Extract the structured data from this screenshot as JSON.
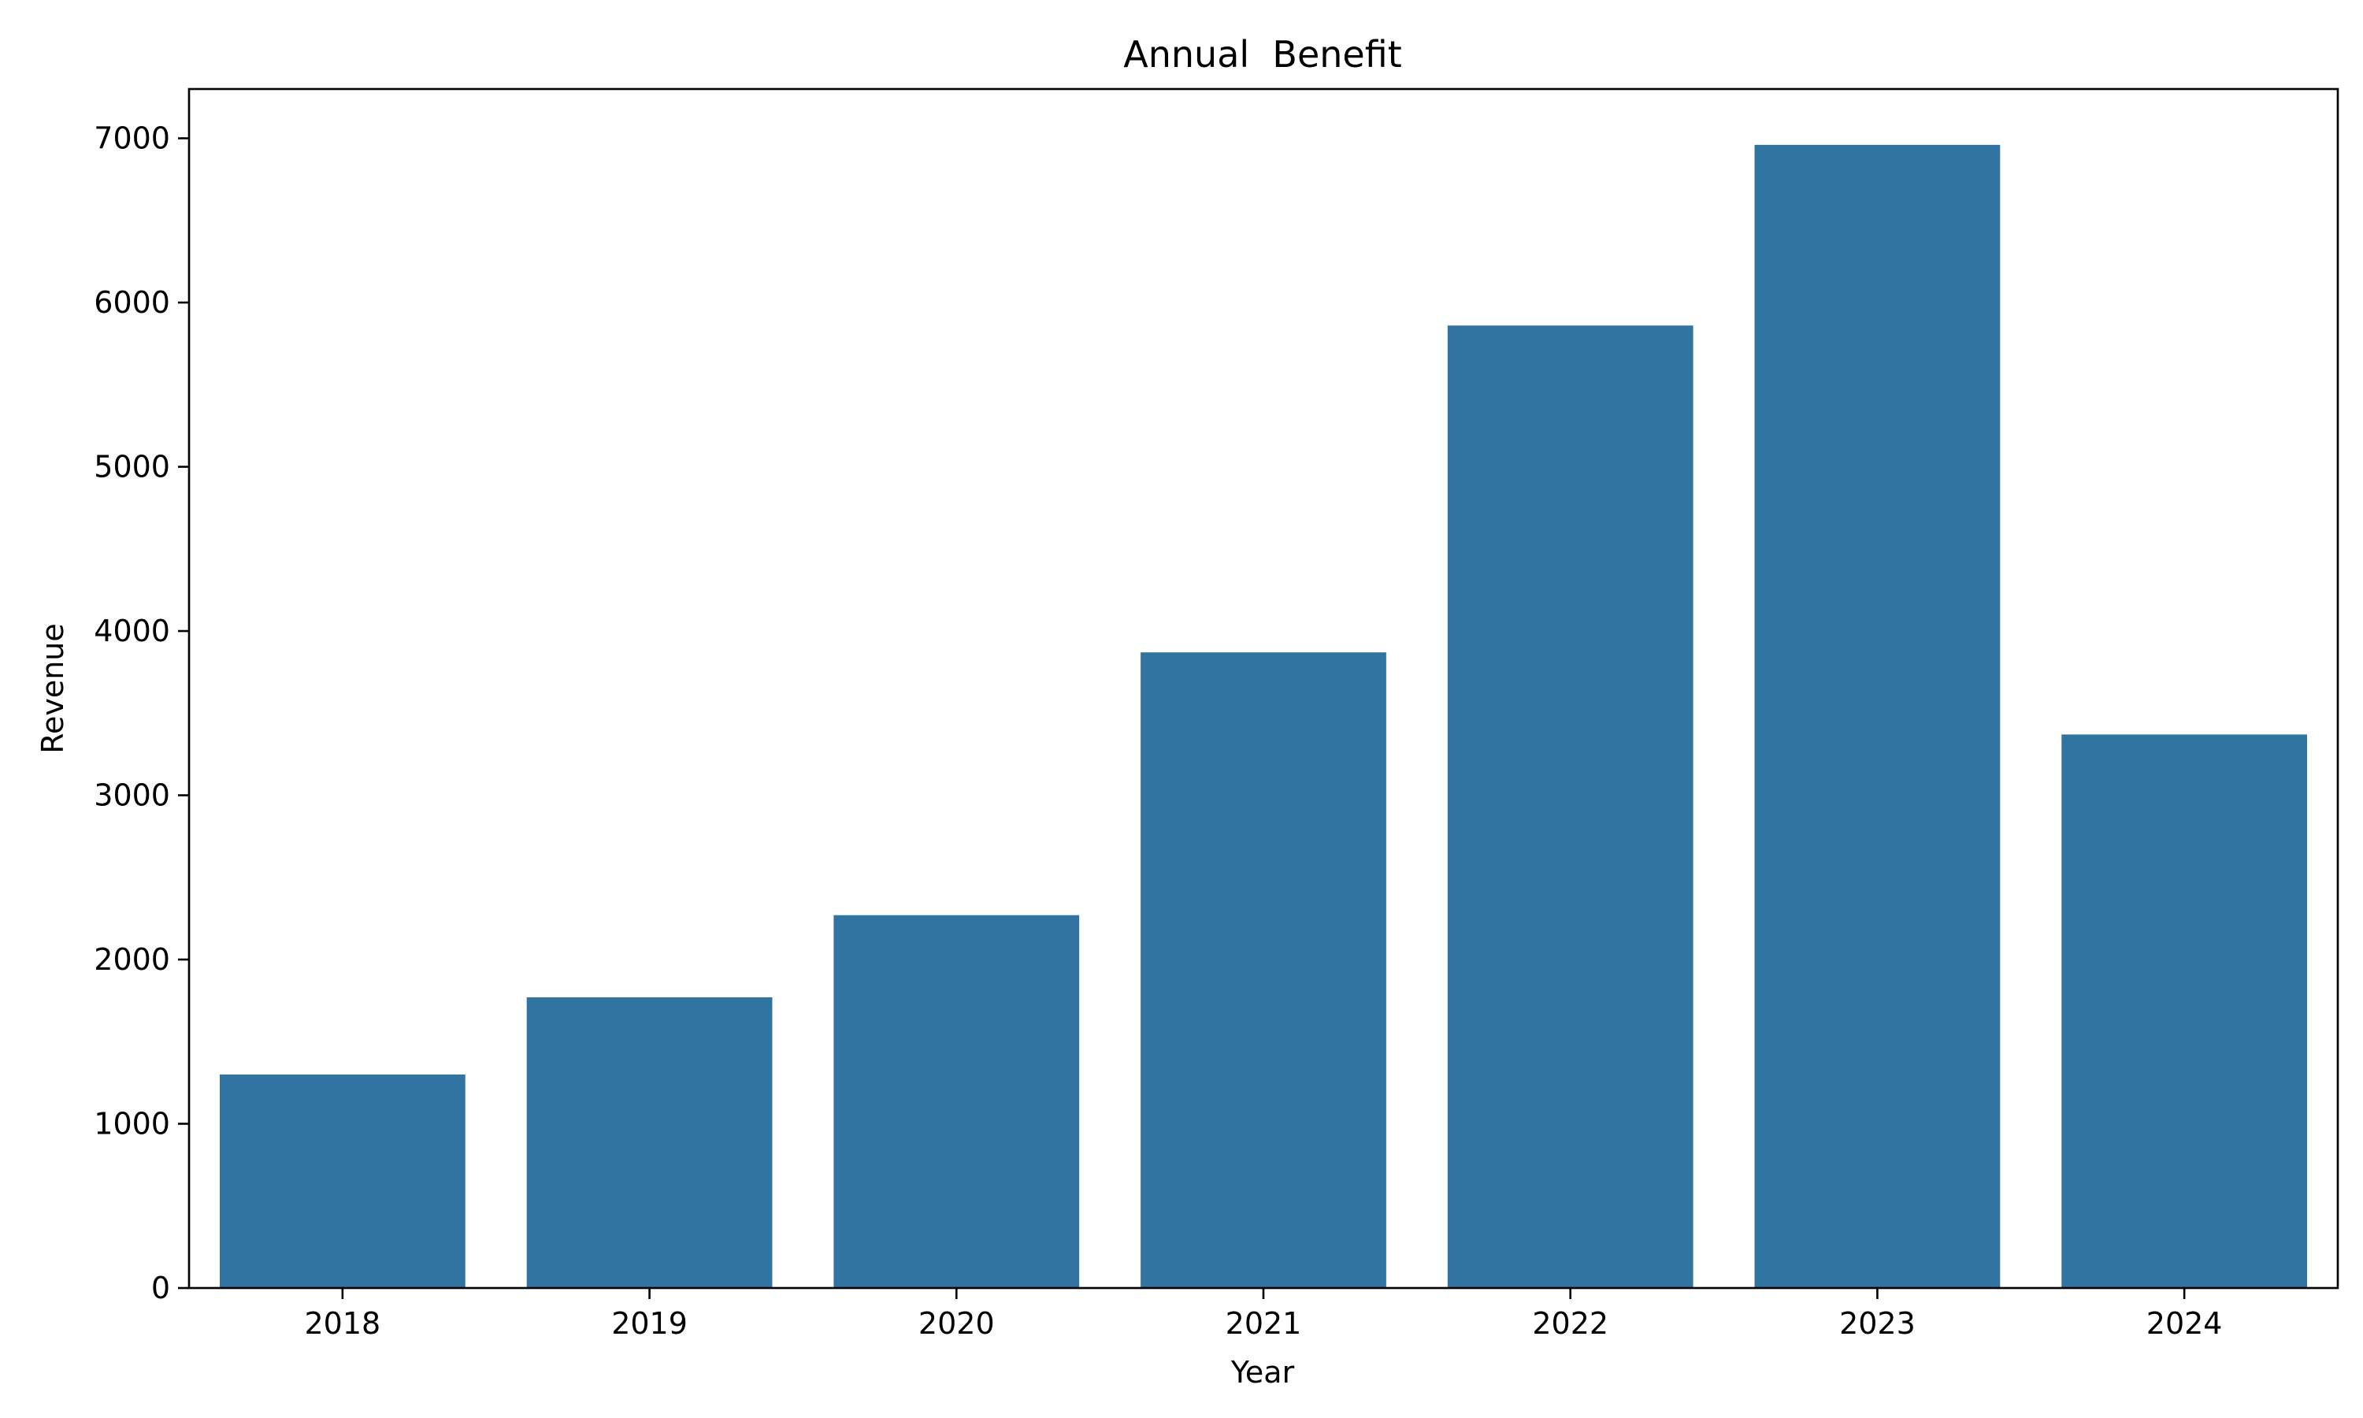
{
  "chart_data": {
    "type": "bar",
    "title": "Annual  Benefit",
    "xlabel": "Year",
    "ylabel": "Revenue",
    "categories": [
      "2018",
      "2019",
      "2020",
      "2021",
      "2022",
      "2023",
      "2024"
    ],
    "values": [
      1300,
      1770,
      2270,
      3870,
      5860,
      6960,
      3370
    ],
    "ylim": [
      0,
      7300
    ],
    "yticks": [
      0,
      1000,
      2000,
      3000,
      4000,
      5000,
      6000,
      7000
    ],
    "ytick_labels": [
      "0",
      "1000",
      "2000",
      "3000",
      "4000",
      "5000",
      "6000",
      "7000"
    ],
    "grid": false,
    "legend": "none",
    "bar_color": "#3274a1"
  }
}
